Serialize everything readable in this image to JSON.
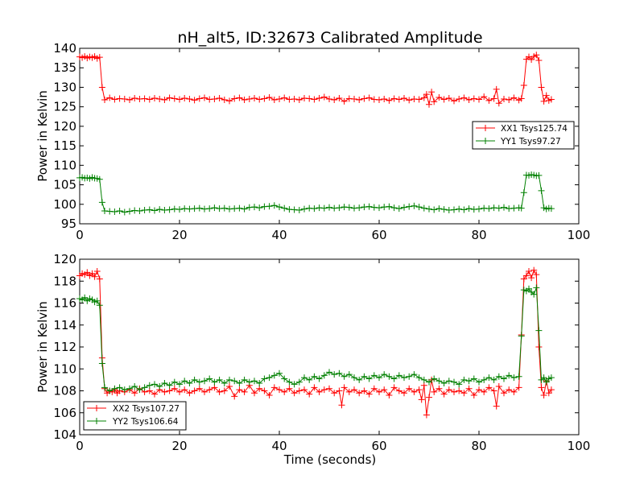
{
  "figure": {
    "title": "nH_alt5, ID:32673 Calibrated Amplitude",
    "xlabel": "Time (seconds)"
  },
  "chart_data": [
    {
      "type": "line",
      "title": "nH_alt5, ID:32673 Calibrated Amplitude",
      "xlabel": "",
      "ylabel": "Power in Kelvin",
      "xlim": [
        0,
        100
      ],
      "ylim": [
        95,
        140
      ],
      "x_ticks": [
        "0",
        "20",
        "40",
        "60",
        "80",
        "100"
      ],
      "y_ticks": [
        "95",
        "100",
        "105",
        "110",
        "115",
        "120",
        "125",
        "130",
        "135",
        "140"
      ],
      "grid": false,
      "legend_position": "center-right",
      "series": [
        {
          "name": "XX1 Tsys125.74",
          "color": "#ff0000",
          "marker": "+",
          "x": [
            0.0,
            0.5,
            1.0,
            1.5,
            2.0,
            2.5,
            3.0,
            3.5,
            4.0,
            4.5,
            5.0,
            6.0,
            7.0,
            8.0,
            9.0,
            10.0,
            11.0,
            12.0,
            13.0,
            14.0,
            15.0,
            16.0,
            17.0,
            18.0,
            19.0,
            20.0,
            21.0,
            22.0,
            23.0,
            24.0,
            25.0,
            26.0,
            27.0,
            28.0,
            29.0,
            30.0,
            31.0,
            32.0,
            33.0,
            34.0,
            35.0,
            36.0,
            37.0,
            38.0,
            39.0,
            40.0,
            41.0,
            42.0,
            43.0,
            44.0,
            45.0,
            46.0,
            47.0,
            48.0,
            49.0,
            50.0,
            51.0,
            52.0,
            53.0,
            54.0,
            55.0,
            56.0,
            57.0,
            58.0,
            59.0,
            60.0,
            61.0,
            62.0,
            63.0,
            64.0,
            65.0,
            66.0,
            67.0,
            68.0,
            69.0,
            69.5,
            70.0,
            70.5,
            71.0,
            72.0,
            73.0,
            74.0,
            75.0,
            76.0,
            77.0,
            78.0,
            79.0,
            80.0,
            81.0,
            82.0,
            83.0,
            83.5,
            84.0,
            85.0,
            86.0,
            87.0,
            88.0,
            88.5,
            89.0,
            89.5,
            90.0,
            90.5,
            91.0,
            91.5,
            92.0,
            92.5,
            93.0,
            93.5,
            94.0,
            94.5
          ],
          "values": [
            137.8,
            137.6,
            137.9,
            137.5,
            137.8,
            137.6,
            137.9,
            137.4,
            137.7,
            130.0,
            126.8,
            127.3,
            126.9,
            127.1,
            127.0,
            126.8,
            127.2,
            127.0,
            127.1,
            126.9,
            127.2,
            127.0,
            126.8,
            127.3,
            127.1,
            126.9,
            127.2,
            127.0,
            126.7,
            127.1,
            127.3,
            126.9,
            127.0,
            127.2,
            126.8,
            126.5,
            127.1,
            127.3,
            126.8,
            127.0,
            127.2,
            126.9,
            127.1,
            127.4,
            126.8,
            127.0,
            127.3,
            126.9,
            127.0,
            126.8,
            127.2,
            127.1,
            126.9,
            127.2,
            127.5,
            127.0,
            126.8,
            127.2,
            126.4,
            127.1,
            127.0,
            126.8,
            127.1,
            127.3,
            126.9,
            126.8,
            127.0,
            126.6,
            127.1,
            126.9,
            127.2,
            126.7,
            127.0,
            126.9,
            127.3,
            128.2,
            125.6,
            128.8,
            126.3,
            127.4,
            126.9,
            127.2,
            126.5,
            127.0,
            127.3,
            126.8,
            127.1,
            126.9,
            127.6,
            126.6,
            127.1,
            129.5,
            125.9,
            127.0,
            126.8,
            127.3,
            126.7,
            127.1,
            130.5,
            137.2,
            137.8,
            137.1,
            137.9,
            138.3,
            136.9,
            130.0,
            126.4,
            127.9,
            126.6,
            126.9
          ]
        },
        {
          "name": "YY1 Tsys97.27",
          "color": "#008000",
          "marker": "+",
          "x": [
            0.0,
            0.5,
            1.0,
            1.5,
            2.0,
            2.5,
            3.0,
            3.5,
            4.0,
            4.5,
            5.0,
            6.0,
            7.0,
            8.0,
            9.0,
            10.0,
            11.0,
            12.0,
            13.0,
            14.0,
            15.0,
            16.0,
            17.0,
            18.0,
            19.0,
            20.0,
            21.0,
            22.0,
            23.0,
            24.0,
            25.0,
            26.0,
            27.0,
            28.0,
            29.0,
            30.0,
            31.0,
            32.0,
            33.0,
            34.0,
            35.0,
            36.0,
            37.0,
            38.0,
            39.0,
            40.0,
            41.0,
            42.0,
            43.0,
            44.0,
            45.0,
            46.0,
            47.0,
            48.0,
            49.0,
            50.0,
            51.0,
            52.0,
            53.0,
            54.0,
            55.0,
            56.0,
            57.0,
            58.0,
            59.0,
            60.0,
            61.0,
            62.0,
            63.0,
            64.0,
            65.0,
            66.0,
            67.0,
            68.0,
            69.0,
            70.0,
            71.0,
            72.0,
            73.0,
            74.0,
            75.0,
            76.0,
            77.0,
            78.0,
            79.0,
            80.0,
            81.0,
            82.0,
            83.0,
            84.0,
            85.0,
            86.0,
            87.0,
            88.0,
            88.5,
            89.0,
            89.5,
            90.0,
            90.5,
            91.0,
            91.5,
            92.0,
            92.5,
            93.0,
            93.5,
            94.0,
            94.5
          ],
          "values": [
            106.8,
            106.9,
            106.7,
            106.8,
            106.6,
            106.9,
            106.7,
            106.6,
            106.4,
            100.5,
            98.3,
            98.2,
            98.1,
            98.3,
            98.0,
            98.2,
            98.4,
            98.3,
            98.5,
            98.6,
            98.4,
            98.7,
            98.5,
            98.6,
            98.8,
            98.7,
            98.9,
            98.8,
            98.9,
            99.0,
            98.8,
            98.9,
            99.1,
            98.9,
            99.0,
            98.8,
            98.9,
            99.0,
            98.8,
            99.2,
            99.3,
            99.1,
            99.4,
            99.5,
            99.7,
            99.3,
            99.0,
            98.7,
            98.6,
            98.5,
            98.8,
            99.0,
            98.9,
            99.1,
            99.0,
            99.2,
            99.0,
            99.1,
            99.3,
            99.2,
            99.0,
            99.1,
            99.3,
            99.4,
            99.2,
            99.1,
            99.3,
            99.4,
            99.1,
            98.9,
            99.2,
            99.4,
            99.6,
            99.3,
            99.0,
            98.8,
            98.6,
            98.9,
            98.7,
            98.5,
            98.6,
            98.8,
            98.6,
            98.9,
            98.7,
            98.8,
            99.0,
            98.9,
            99.1,
            99.0,
            99.2,
            98.9,
            99.0,
            99.1,
            99.0,
            103.0,
            107.5,
            107.4,
            107.6,
            107.5,
            107.3,
            107.4,
            103.5,
            99.1,
            98.8,
            99.0,
            98.9
          ]
        }
      ]
    },
    {
      "type": "line",
      "title": "",
      "xlabel": "Time (seconds)",
      "ylabel": "Power in Kelvin",
      "xlim": [
        0,
        100
      ],
      "ylim": [
        104,
        120
      ],
      "x_ticks": [
        "0",
        "20",
        "40",
        "60",
        "80",
        "100"
      ],
      "y_ticks": [
        "104",
        "106",
        "108",
        "110",
        "112",
        "114",
        "116",
        "118",
        "120"
      ],
      "grid": false,
      "legend_position": "bottom-left",
      "series": [
        {
          "name": "XX2 Tsys107.27",
          "color": "#ff0000",
          "marker": "+",
          "x": [
            0.0,
            0.5,
            1.0,
            1.5,
            2.0,
            2.5,
            3.0,
            3.5,
            4.0,
            4.5,
            5.0,
            5.5,
            6.0,
            6.5,
            7.0,
            7.5,
            8.0,
            9.0,
            10.0,
            11.0,
            12.0,
            13.0,
            14.0,
            15.0,
            16.0,
            17.0,
            18.0,
            19.0,
            20.0,
            21.0,
            22.0,
            23.0,
            24.0,
            25.0,
            26.0,
            27.0,
            28.0,
            29.0,
            30.0,
            31.0,
            32.0,
            33.0,
            34.0,
            35.0,
            36.0,
            37.0,
            38.0,
            39.0,
            40.0,
            41.0,
            42.0,
            43.0,
            44.0,
            45.0,
            46.0,
            47.0,
            48.0,
            49.0,
            50.0,
            51.0,
            52.0,
            52.5,
            53.0,
            54.0,
            55.0,
            56.0,
            57.0,
            58.0,
            59.0,
            60.0,
            61.0,
            62.0,
            63.0,
            64.0,
            65.0,
            66.0,
            67.0,
            68.0,
            68.5,
            69.0,
            69.5,
            70.0,
            70.5,
            71.0,
            72.0,
            73.0,
            74.0,
            75.0,
            76.0,
            77.0,
            78.0,
            79.0,
            80.0,
            81.0,
            82.0,
            83.0,
            83.5,
            84.0,
            85.0,
            86.0,
            87.0,
            88.0,
            88.5,
            89.0,
            89.5,
            90.0,
            90.5,
            91.0,
            91.5,
            92.0,
            92.5,
            93.0,
            93.5,
            94.0,
            94.5
          ],
          "values": [
            118.5,
            118.7,
            118.6,
            118.8,
            118.5,
            118.7,
            118.4,
            118.9,
            118.2,
            111.0,
            108.2,
            107.8,
            108.0,
            107.9,
            108.1,
            107.8,
            108.0,
            107.9,
            108.1,
            107.8,
            108.2,
            107.9,
            108.0,
            107.7,
            108.1,
            107.9,
            108.0,
            108.2,
            107.9,
            108.1,
            107.8,
            108.0,
            108.2,
            107.9,
            108.1,
            108.3,
            107.9,
            108.0,
            108.4,
            107.5,
            108.1,
            107.9,
            108.5,
            107.8,
            108.2,
            108.0,
            107.6,
            108.3,
            108.1,
            107.9,
            108.2,
            107.8,
            108.0,
            108.1,
            107.7,
            108.3,
            107.9,
            108.1,
            108.2,
            107.8,
            108.0,
            106.7,
            108.3,
            107.9,
            108.1,
            107.8,
            108.0,
            107.7,
            108.2,
            107.9,
            108.1,
            107.6,
            108.3,
            108.0,
            107.8,
            108.2,
            107.9,
            108.1,
            107.2,
            108.5,
            105.8,
            107.4,
            109.0,
            107.9,
            108.2,
            107.7,
            108.1,
            107.9,
            108.0,
            107.8,
            108.2,
            107.6,
            108.1,
            107.9,
            108.3,
            108.0,
            106.6,
            108.4,
            107.8,
            108.1,
            107.9,
            108.3,
            113.1,
            118.2,
            118.5,
            118.9,
            118.3,
            119.0,
            118.6,
            112.0,
            108.3,
            107.6,
            108.9,
            107.8,
            108.1
          ]
        },
        {
          "name": "YY2 Tsys106.64",
          "color": "#008000",
          "marker": "+",
          "x": [
            0.0,
            0.5,
            1.0,
            1.5,
            2.0,
            2.5,
            3.0,
            3.5,
            4.0,
            4.5,
            5.0,
            6.0,
            7.0,
            8.0,
            9.0,
            10.0,
            11.0,
            12.0,
            13.0,
            14.0,
            15.0,
            16.0,
            17.0,
            18.0,
            19.0,
            20.0,
            21.0,
            22.0,
            23.0,
            24.0,
            25.0,
            26.0,
            27.0,
            28.0,
            29.0,
            30.0,
            31.0,
            32.0,
            33.0,
            34.0,
            35.0,
            36.0,
            37.0,
            38.0,
            39.0,
            40.0,
            41.0,
            42.0,
            43.0,
            44.0,
            45.0,
            46.0,
            47.0,
            48.0,
            49.0,
            50.0,
            51.0,
            52.0,
            53.0,
            54.0,
            55.0,
            56.0,
            57.0,
            58.0,
            59.0,
            60.0,
            61.0,
            62.0,
            63.0,
            64.0,
            65.0,
            66.0,
            67.0,
            68.0,
            69.0,
            70.0,
            71.0,
            72.0,
            73.0,
            74.0,
            75.0,
            76.0,
            77.0,
            78.0,
            79.0,
            80.0,
            81.0,
            82.0,
            83.0,
            84.0,
            85.0,
            86.0,
            87.0,
            88.0,
            88.5,
            89.0,
            89.5,
            90.0,
            90.5,
            91.0,
            91.5,
            92.0,
            92.5,
            93.0,
            93.5,
            94.0,
            94.5
          ],
          "values": [
            116.4,
            116.3,
            116.5,
            116.2,
            116.4,
            116.3,
            116.1,
            116.2,
            115.8,
            110.5,
            108.3,
            108.0,
            108.2,
            108.3,
            108.1,
            108.2,
            108.4,
            108.1,
            108.3,
            108.5,
            108.6,
            108.4,
            108.7,
            108.5,
            108.8,
            108.6,
            108.9,
            108.7,
            109.0,
            108.8,
            108.9,
            109.1,
            108.8,
            109.0,
            108.7,
            109.0,
            108.9,
            108.7,
            109.0,
            108.8,
            108.9,
            108.7,
            109.1,
            109.2,
            109.4,
            109.6,
            109.1,
            108.8,
            108.6,
            108.8,
            109.2,
            109.0,
            109.3,
            109.1,
            109.4,
            109.7,
            109.5,
            109.6,
            109.3,
            109.5,
            109.2,
            109.0,
            109.3,
            109.1,
            109.4,
            109.2,
            109.5,
            109.3,
            109.1,
            109.4,
            109.2,
            109.3,
            109.5,
            109.2,
            109.0,
            108.8,
            109.1,
            108.9,
            108.7,
            108.9,
            108.8,
            108.6,
            109.0,
            108.9,
            109.1,
            108.8,
            109.0,
            109.2,
            109.0,
            109.3,
            109.1,
            109.4,
            109.2,
            109.3,
            113.0,
            117.2,
            117.1,
            117.3,
            117.0,
            116.8,
            117.4,
            113.5,
            109.0,
            109.2,
            108.8,
            109.1,
            109.2
          ]
        }
      ]
    }
  ]
}
